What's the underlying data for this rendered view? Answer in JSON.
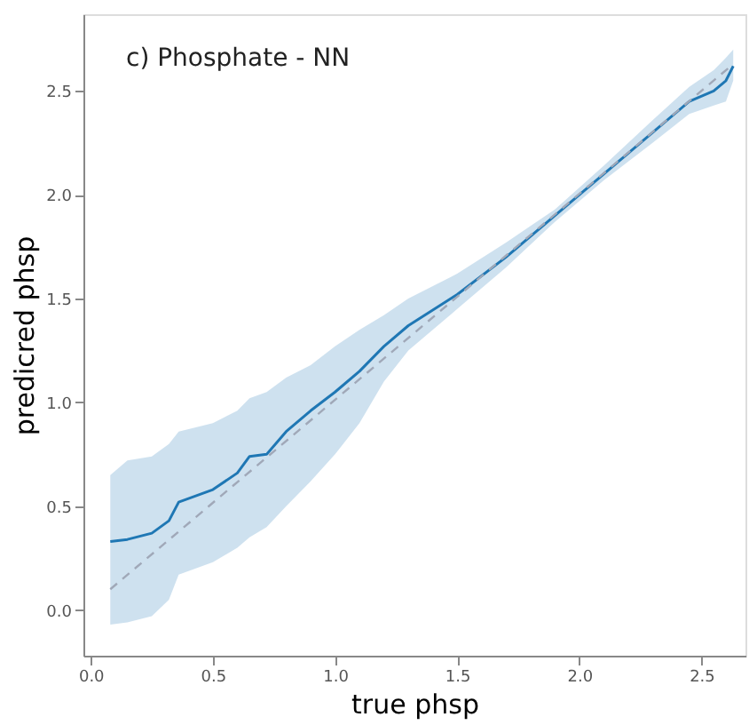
{
  "chart_data": {
    "type": "line",
    "title": "c) Phosphate - NN",
    "xlabel": "true phsp",
    "ylabel": "predicred phsp",
    "xlim": [
      -0.03,
      2.68
    ],
    "ylim": [
      -0.22,
      2.87
    ],
    "xticks": [
      {
        "value": 0,
        "label": "0.0"
      },
      0.5,
      {
        "value": 1,
        "label": "1.0"
      },
      1.5,
      {
        "value": 2,
        "label": "2.0"
      },
      2.5
    ],
    "yticks": [
      {
        "value": 0,
        "label": "0.0"
      },
      0.5,
      {
        "value": 1,
        "label": "1.0"
      },
      1.5,
      {
        "value": 2,
        "label": "2.0"
      },
      2.5
    ],
    "grid": false,
    "series": [
      {
        "color": "#1f77b4",
        "line_style": "solid",
        "x": [
          0.08,
          0.15,
          0.25,
          0.32,
          0.36,
          0.5,
          0.6,
          0.65,
          0.72,
          0.8,
          0.9,
          1.0,
          1.1,
          1.2,
          1.3,
          1.5,
          1.7,
          1.9,
          2.1,
          2.3,
          2.45,
          2.55,
          2.6,
          2.63
        ],
        "values": [
          0.33,
          0.34,
          0.37,
          0.43,
          0.52,
          0.58,
          0.66,
          0.74,
          0.75,
          0.86,
          0.96,
          1.05,
          1.15,
          1.27,
          1.37,
          1.52,
          1.7,
          1.9,
          2.1,
          2.3,
          2.45,
          2.5,
          2.55,
          2.62
        ],
        "lower": [
          -0.07,
          -0.06,
          -0.03,
          0.05,
          0.17,
          0.23,
          0.3,
          0.35,
          0.4,
          0.5,
          0.62,
          0.75,
          0.9,
          1.1,
          1.25,
          1.45,
          1.65,
          1.87,
          2.07,
          2.25,
          2.39,
          2.43,
          2.45,
          2.55
        ],
        "upper": [
          0.65,
          0.72,
          0.74,
          0.8,
          0.86,
          0.9,
          0.96,
          1.02,
          1.05,
          1.12,
          1.18,
          1.27,
          1.35,
          1.42,
          1.5,
          1.62,
          1.77,
          1.93,
          2.14,
          2.36,
          2.52,
          2.6,
          2.66,
          2.7
        ]
      },
      {
        "color": "#a0a8b8",
        "line_style": "dashed",
        "x": [
          0.08,
          2.63
        ],
        "values": [
          0.1,
          2.63
        ]
      }
    ]
  }
}
